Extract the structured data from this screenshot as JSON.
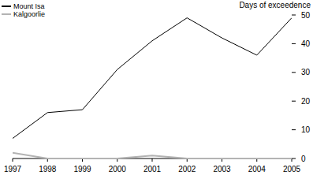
{
  "chart_data": {
    "type": "line",
    "y_label": "Days of exceedence",
    "x": [
      1997,
      1998,
      1999,
      2000,
      2001,
      2002,
      2003,
      2004,
      2005
    ],
    "series": [
      {
        "name": "Mount Isa",
        "color": "#000000",
        "values": [
          7,
          16,
          17,
          31,
          41,
          49,
          42,
          36,
          49
        ]
      },
      {
        "name": "Kalgoorlie",
        "color": "#b3b3b3",
        "values": [
          2,
          0,
          0,
          0,
          1,
          0,
          0,
          0,
          0
        ]
      }
    ],
    "xlim": [
      1997,
      2005
    ],
    "xticks": [
      1997,
      1998,
      1999,
      2000,
      2001,
      2002,
      2003,
      2004,
      2005
    ],
    "ylim": [
      0,
      50
    ],
    "yticks": [
      0,
      10,
      20,
      30,
      40,
      50
    ],
    "grid": false,
    "legend": "upper left"
  }
}
